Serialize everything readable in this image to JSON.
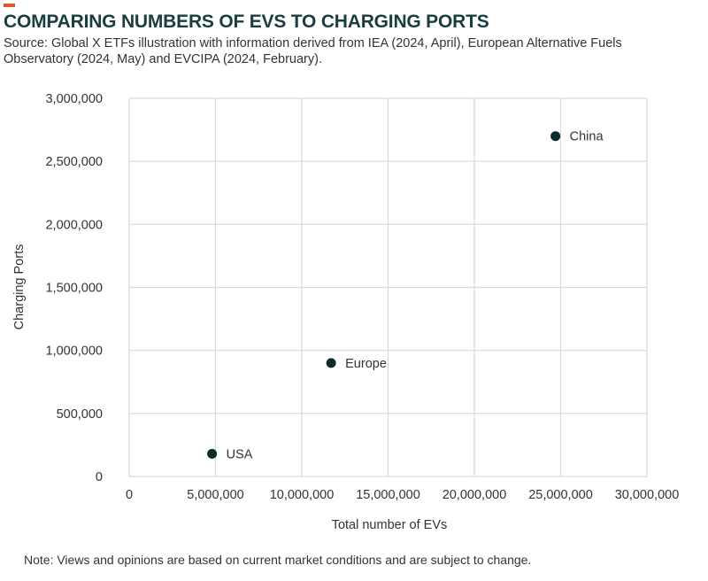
{
  "header": {
    "title": "COMPARING NUMBERS OF EVS TO CHARGING PORTS",
    "source": "Source: Global X ETFs illustration with information derived from IEA (2024, April), European Alternative Fuels Observatory (2024, May) and EVCIPA (2024, February)."
  },
  "footer": {
    "note": "Note: Views and opinions are based on current market conditions and are subject to change."
  },
  "colors": {
    "accent": "#e0592a",
    "title": "#1a3d3f",
    "point": "#0d2b2e",
    "grid": "#d9d9d9"
  },
  "chart_data": {
    "type": "scatter",
    "xlabel": "Total number of EVs",
    "ylabel": "Charging Ports",
    "xlim": [
      0,
      30000000
    ],
    "ylim": [
      0,
      3000000
    ],
    "x_ticks": [
      0,
      5000000,
      10000000,
      15000000,
      20000000,
      25000000,
      30000000
    ],
    "x_tick_labels": [
      "0",
      "5,000,000",
      "10,000,000",
      "15,000,000",
      "20,000,000",
      "25,000,000",
      "30,000,000"
    ],
    "y_ticks": [
      0,
      500000,
      1000000,
      1500000,
      2000000,
      2500000,
      3000000
    ],
    "y_tick_labels": [
      "0",
      "500,000",
      "1,000,000",
      "1,500,000",
      "2,000,000",
      "2,500,000",
      "3,000,000"
    ],
    "grid": true,
    "points": [
      {
        "label": "China",
        "x": 24700000,
        "y": 2700000
      },
      {
        "label": "Europe",
        "x": 11700000,
        "y": 900000
      },
      {
        "label": "USA",
        "x": 4800000,
        "y": 180000
      }
    ]
  }
}
